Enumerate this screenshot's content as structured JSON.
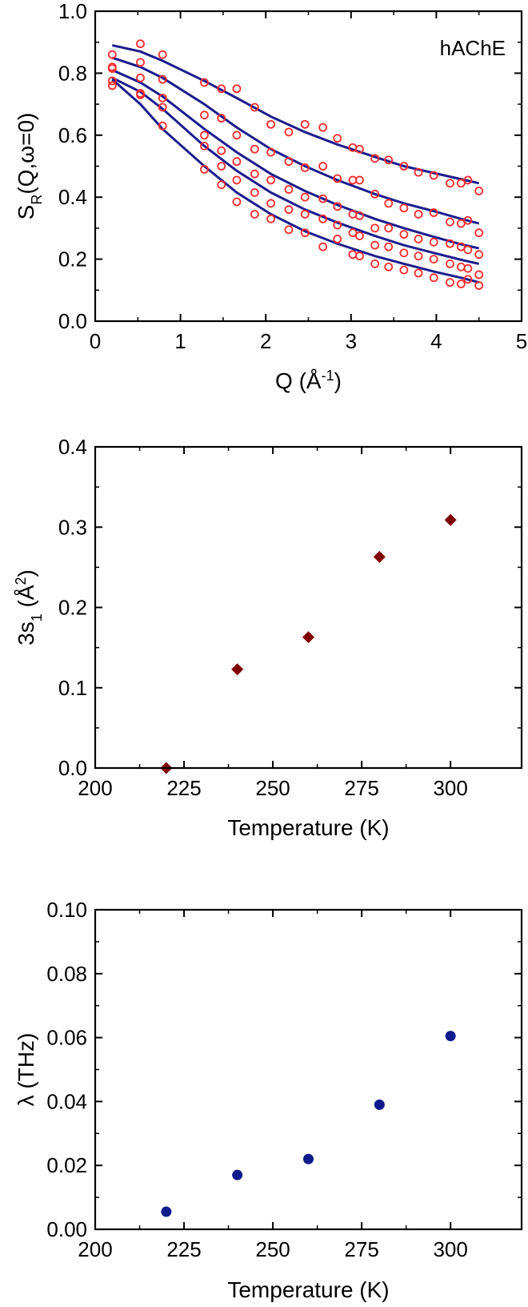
{
  "chart_data": [
    {
      "type": "scatter",
      "title": "",
      "annotation": "hAChE",
      "xlabel": {
        "main": "Q (Å",
        "sup": "-1",
        "tail": ")"
      },
      "ylabel": {
        "main": "S",
        "sub": "R",
        "tail": "(Q,ω=0)"
      },
      "xlim": [
        0,
        5
      ],
      "ylim": [
        0,
        1.0
      ],
      "xticks": [
        "0",
        "1",
        "2",
        "3",
        "4",
        "5"
      ],
      "yticks": [
        "0.0",
        "0.2",
        "0.4",
        "0.6",
        "0.8",
        "1.0"
      ],
      "grid": false,
      "colors": {
        "points": "#ff2a2a",
        "lines": "#1c1c8c"
      },
      "series": [
        {
          "x": [
            0.2,
            0.53,
            0.79,
            1.28,
            1.48,
            1.66,
            1.87,
            2.06,
            2.27,
            2.46,
            2.67,
            2.84,
            3.02,
            3.1,
            3.28,
            3.44,
            3.62,
            3.79,
            3.97,
            4.16,
            4.29,
            4.37,
            4.5
          ],
          "y": [
            0.86,
            0.895,
            0.86,
            0.77,
            0.75,
            0.75,
            0.69,
            0.635,
            0.61,
            0.635,
            0.625,
            0.59,
            0.56,
            0.555,
            0.525,
            0.52,
            0.5,
            0.48,
            0.47,
            0.445,
            0.445,
            0.455,
            0.42
          ],
          "fit_x": [
            0.2,
            0.53,
            0.79,
            1.28,
            1.66,
            2.06,
            2.46,
            2.84,
            3.28,
            3.62,
            3.97,
            4.29,
            4.5
          ],
          "fit_y": [
            0.89,
            0.87,
            0.84,
            0.775,
            0.72,
            0.66,
            0.61,
            0.57,
            0.53,
            0.5,
            0.478,
            0.458,
            0.445
          ]
        },
        {
          "x": [
            0.2,
            0.53,
            0.79,
            1.28,
            1.48,
            1.66,
            1.87,
            2.06,
            2.27,
            2.46,
            2.67,
            2.84,
            3.02,
            3.1,
            3.28,
            3.44,
            3.62,
            3.79,
            3.97,
            4.16,
            4.29,
            4.37,
            4.5
          ],
          "y": [
            0.82,
            0.835,
            0.78,
            0.665,
            0.655,
            0.6,
            0.555,
            0.545,
            0.515,
            0.495,
            0.5,
            0.46,
            0.455,
            0.455,
            0.41,
            0.38,
            0.365,
            0.345,
            0.35,
            0.32,
            0.315,
            0.325,
            0.285
          ],
          "fit_x": [
            0.2,
            0.53,
            0.79,
            1.28,
            1.66,
            2.06,
            2.46,
            2.84,
            3.28,
            3.62,
            3.97,
            4.29,
            4.5
          ],
          "fit_y": [
            0.85,
            0.82,
            0.785,
            0.7,
            0.625,
            0.555,
            0.5,
            0.455,
            0.41,
            0.38,
            0.355,
            0.33,
            0.315
          ]
        },
        {
          "x": [
            0.2,
            0.53,
            0.79,
            1.28,
            1.48,
            1.66,
            1.87,
            2.06,
            2.27,
            2.46,
            2.67,
            2.84,
            3.02,
            3.1,
            3.28,
            3.44,
            3.62,
            3.79,
            3.97,
            4.16,
            4.29,
            4.37,
            4.5
          ],
          "y": [
            0.815,
            0.785,
            0.72,
            0.6,
            0.55,
            0.515,
            0.475,
            0.455,
            0.425,
            0.4,
            0.395,
            0.37,
            0.345,
            0.34,
            0.3,
            0.3,
            0.28,
            0.265,
            0.255,
            0.25,
            0.24,
            0.23,
            0.215
          ],
          "fit_x": [
            0.2,
            0.53,
            0.79,
            1.28,
            1.66,
            2.06,
            2.46,
            2.84,
            3.28,
            3.62,
            3.97,
            4.29,
            4.5
          ],
          "fit_y": [
            0.81,
            0.77,
            0.725,
            0.62,
            0.545,
            0.475,
            0.42,
            0.375,
            0.33,
            0.3,
            0.272,
            0.248,
            0.235
          ]
        },
        {
          "x": [
            0.2,
            0.53,
            0.79,
            1.28,
            1.48,
            1.66,
            1.87,
            2.06,
            2.27,
            2.46,
            2.67,
            2.84,
            3.02,
            3.1,
            3.28,
            3.44,
            3.62,
            3.79,
            3.97,
            4.16,
            4.29,
            4.37,
            4.5
          ],
          "y": [
            0.775,
            0.735,
            0.69,
            0.565,
            0.5,
            0.455,
            0.415,
            0.38,
            0.36,
            0.345,
            0.33,
            0.31,
            0.285,
            0.275,
            0.245,
            0.24,
            0.22,
            0.21,
            0.2,
            0.185,
            0.175,
            0.17,
            0.15
          ],
          "fit_x": [
            0.2,
            0.53,
            0.79,
            1.28,
            1.66,
            2.06,
            2.46,
            2.84,
            3.28,
            3.62,
            3.97,
            4.29,
            4.5
          ],
          "fit_y": [
            0.785,
            0.74,
            0.685,
            0.565,
            0.485,
            0.415,
            0.36,
            0.318,
            0.275,
            0.245,
            0.22,
            0.198,
            0.185
          ]
        },
        {
          "x": [
            0.2,
            0.53,
            0.79,
            1.28,
            1.48,
            1.66,
            1.87,
            2.06,
            2.27,
            2.46,
            2.67,
            2.84,
            3.02,
            3.1,
            3.28,
            3.44,
            3.62,
            3.79,
            3.97,
            4.16,
            4.29,
            4.37,
            4.5
          ],
          "y": [
            0.76,
            0.73,
            0.63,
            0.49,
            0.44,
            0.385,
            0.345,
            0.33,
            0.295,
            0.285,
            0.24,
            0.265,
            0.215,
            0.21,
            0.185,
            0.175,
            0.165,
            0.155,
            0.14,
            0.125,
            0.12,
            0.135,
            0.115
          ],
          "fit_x": [
            0.2,
            0.53,
            0.79,
            1.28,
            1.66,
            2.06,
            2.46,
            2.84,
            3.28,
            3.62,
            3.97,
            4.29,
            4.5
          ],
          "fit_y": [
            0.78,
            0.7,
            0.62,
            0.5,
            0.415,
            0.345,
            0.29,
            0.25,
            0.21,
            0.185,
            0.16,
            0.14,
            0.125
          ]
        }
      ]
    },
    {
      "type": "scatter",
      "title": "",
      "xlabel": {
        "main": "Temperature (K)"
      },
      "ylabel": {
        "main": "3s",
        "sub": "1",
        "tail": " (Å",
        "sup": "2",
        "tail2": ")"
      },
      "xlim": [
        200,
        320
      ],
      "ylim": [
        0,
        0.4
      ],
      "xticks": [
        "200",
        "225",
        "250",
        "275",
        "300"
      ],
      "yticks": [
        "0.0",
        "0.1",
        "0.2",
        "0.3",
        "0.4"
      ],
      "grid": false,
      "marker": "diamond",
      "colors": {
        "points": "#800000"
      },
      "x": [
        220,
        240,
        260,
        280,
        300
      ],
      "y": [
        0.0,
        0.123,
        0.163,
        0.263,
        0.309
      ]
    },
    {
      "type": "scatter",
      "title": "",
      "xlabel": {
        "main": "Temperature (K)"
      },
      "ylabel": {
        "main": "λ (THz)"
      },
      "xlim": [
        200,
        320
      ],
      "ylim": [
        0,
        0.1
      ],
      "xticks": [
        "200",
        "225",
        "250",
        "275",
        "300"
      ],
      "yticks": [
        "0.00",
        "0.02",
        "0.04",
        "0.06",
        "0.08",
        "0.10"
      ],
      "grid": false,
      "marker": "circle",
      "colors": {
        "points": "#0d1a8c"
      },
      "x": [
        220,
        240,
        260,
        280,
        300
      ],
      "y": [
        0.0055,
        0.017,
        0.022,
        0.039,
        0.0605
      ]
    }
  ]
}
